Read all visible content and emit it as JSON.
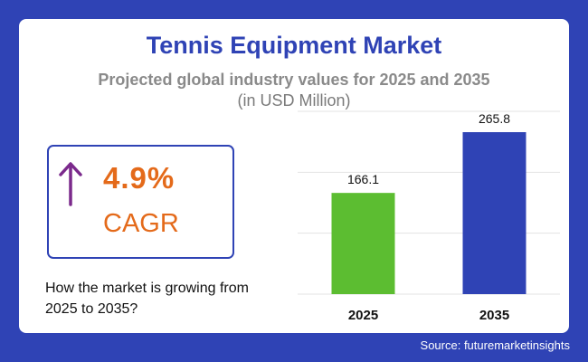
{
  "header": {
    "title": "Tennis Equipment Market",
    "subtitle": "Projected global industry values for 2025 and 2035",
    "unit": "(in USD Million)"
  },
  "cagr": {
    "value": "4.9%",
    "label": "CAGR",
    "icon": "arrow-up-icon",
    "color": "#e46a1a",
    "arrow_color": "#7b2a8c"
  },
  "growth_text": "How the market is growing from 2025 to 2035?",
  "source": "Source: futuremarketinsights",
  "colors": {
    "background": "#2f43b5",
    "title": "#2f43b5"
  },
  "chart_data": {
    "type": "bar",
    "categories": [
      "2025",
      "2035"
    ],
    "values": [
      166.1,
      265.8
    ],
    "value_labels": [
      "166.1",
      "265.8"
    ],
    "colors": [
      "#5cbd31",
      "#2f43b5"
    ],
    "title": "",
    "xlabel": "",
    "ylabel": "",
    "ylim": [
      0,
      300
    ],
    "grid": true
  }
}
